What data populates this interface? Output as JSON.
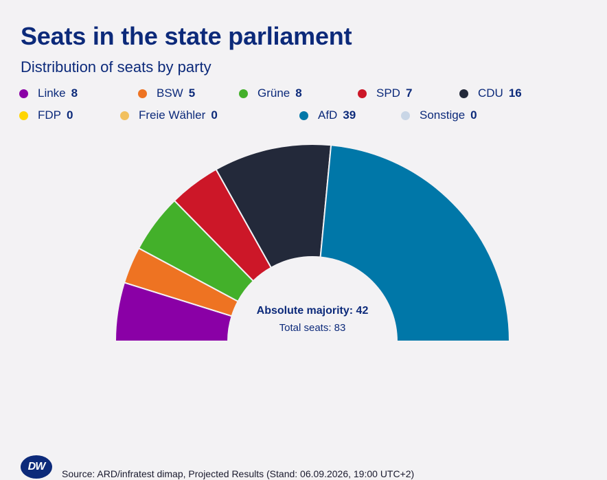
{
  "title": "Seats in the state parliament",
  "subtitle": "Distribution of seats by party",
  "chart_data": {
    "type": "pie",
    "variant": "half-donut",
    "title": "Seats in the state parliament",
    "subtitle": "Distribution of seats by party",
    "categories": [
      "Linke",
      "BSW",
      "Grüne",
      "SPD",
      "CDU",
      "FDP",
      "Freie Wähler",
      "AfD",
      "Sonstige"
    ],
    "values": [
      8,
      5,
      8,
      7,
      16,
      0,
      0,
      39,
      0
    ],
    "colors": [
      "#8a00a6",
      "#ee7322",
      "#43b02a",
      "#cc1728",
      "#23293a",
      "#ffd500",
      "#f2c05e",
      "#0077a8",
      "#c9d6e6"
    ],
    "center_label": "Absolute majority: 42",
    "center_sublabel": "Total seats: 83",
    "legend_position": "top"
  },
  "footer": {
    "logo": "DW",
    "source": "Source: ARD/infratest dimap, Projected Results (Stand: 06.09.2026, 19:00 UTC+2)"
  }
}
